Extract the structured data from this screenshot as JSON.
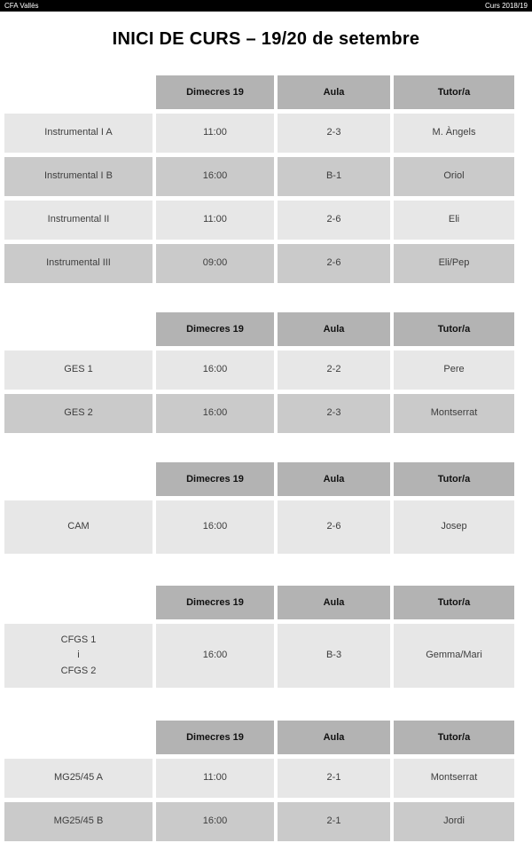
{
  "topbar": {
    "left": "CFA Vallès",
    "right": "Curs 2018/19"
  },
  "title": "INICI DE CURS – 19/20 de setembre",
  "colors": {
    "topbar_bg": "#000000",
    "topbar_text": "#ffffff",
    "header_cell": "#b3b3b3",
    "row_light": "#e7e7e7",
    "row_dark": "#cacaca",
    "cell_text": "#3d3d3d"
  },
  "tables": [
    {
      "headers": [
        "Dimecres 19",
        "Aula",
        "Tutor/a"
      ],
      "rows": [
        {
          "label": "Instrumental I A",
          "time": "11:00",
          "room": "2-3",
          "tutor": "M. Àngels"
        },
        {
          "label": "Instrumental I B",
          "time": "16:00",
          "room": "B-1",
          "tutor": "Oriol"
        },
        {
          "label": "Instrumental II",
          "time": "11:00",
          "room": "2-6",
          "tutor": "Eli"
        },
        {
          "label": "Instrumental III",
          "time": "09:00",
          "room": "2-6",
          "tutor": "Eli/Pep"
        }
      ]
    },
    {
      "headers": [
        "Dimecres 19",
        "Aula",
        "Tutor/a"
      ],
      "rows": [
        {
          "label": "GES 1",
          "time": "16:00",
          "room": "2-2",
          "tutor": "Pere"
        },
        {
          "label": "GES 2",
          "time": "16:00",
          "room": "2-3",
          "tutor": "Montserrat"
        }
      ]
    },
    {
      "headers": [
        "Dimecres 19",
        "Aula",
        "Tutor/a"
      ],
      "rows": [
        {
          "label": "CAM",
          "time": "16:00",
          "room": "2-6",
          "tutor": "Josep"
        }
      ]
    },
    {
      "headers": [
        "Dimecres 19",
        "Aula",
        "Tutor/a"
      ],
      "rows": [
        {
          "label": "CFGS 1\ni\nCFGS 2",
          "time": "16:00",
          "room": "B-3",
          "tutor": "Gemma/Mari"
        }
      ]
    },
    {
      "headers": [
        "Dimecres 19",
        "Aula",
        "Tutor/a"
      ],
      "rows": [
        {
          "label": "MG25/45 A",
          "time": "11:00",
          "room": "2-1",
          "tutor": "Montserrat"
        },
        {
          "label": "MG25/45 B",
          "time": "16:00",
          "room": "2-1",
          "tutor": "Jordi"
        }
      ]
    }
  ]
}
